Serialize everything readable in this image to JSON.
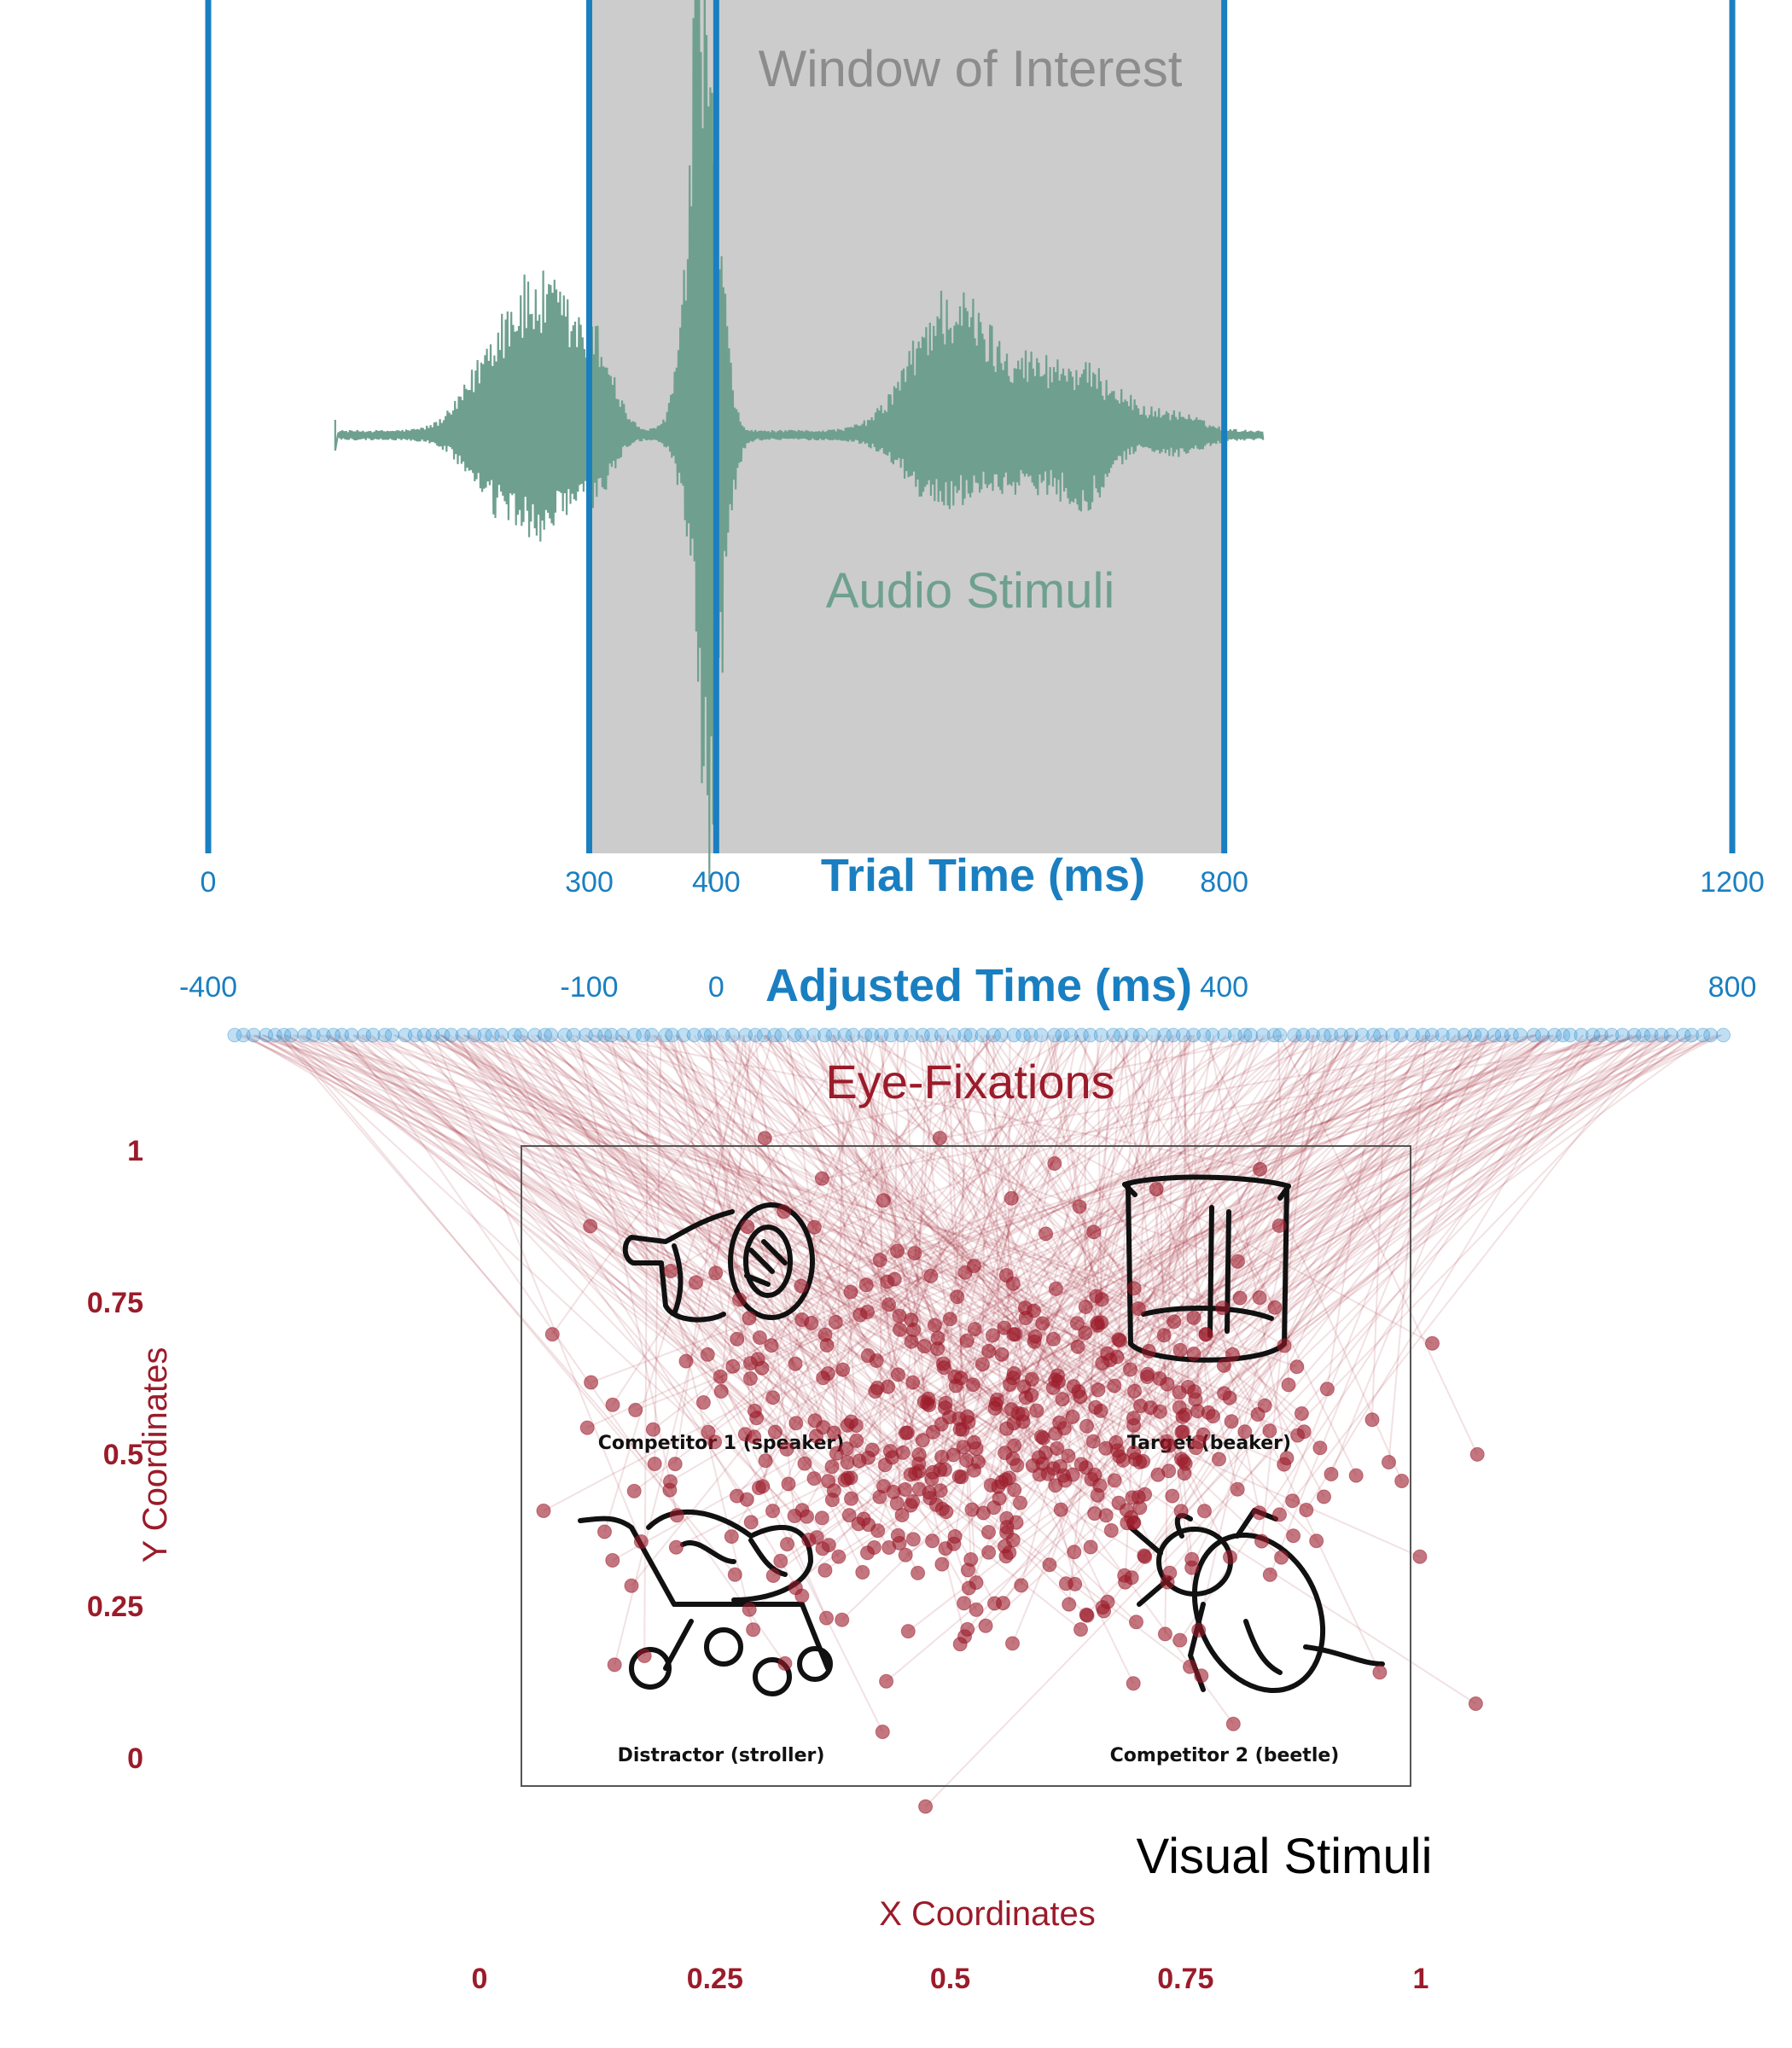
{
  "colors": {
    "timeline_blue": "#1a7fc1",
    "window_fill": "#cccccc",
    "waveform": "#6fa08f",
    "fixation_red": "#9b1b2a",
    "text_gray": "#8c8c8c"
  },
  "labels": {
    "window_of_interest": "Window of Interest",
    "audio_stimuli": "Audio Stimuli",
    "trial_time_title": "Trial Time (ms)",
    "adjusted_time_title": "Adjusted Time (ms)",
    "eye_fixations": "Eye-Fixations",
    "visual_stimuli": "Visual Stimuli",
    "y_axis_title": "Y Coordinates",
    "x_axis_title": "X Coordinates"
  },
  "stimuli": {
    "competitor1": "Competitor  1 (speaker)",
    "target": "Target (beaker)",
    "distractor": "Distractor (stroller)",
    "competitor2": "Competitor 2 (beetle)"
  },
  "icons": [
    "speaker-icon",
    "beaker-icon",
    "stroller-icon",
    "beetle-icon"
  ],
  "chart_data": {
    "type": "scatter",
    "trial_time": {
      "title": "Trial Time (ms)",
      "ticks": [
        0,
        300,
        400,
        800,
        1200
      ],
      "tick_labels": [
        "0",
        "300",
        "400",
        "800",
        "1200"
      ],
      "range": [
        0,
        1200
      ],
      "markers": [
        0,
        300,
        400,
        800,
        1200
      ],
      "window_of_interest": [
        300,
        800
      ]
    },
    "adjusted_time": {
      "title": "Adjusted Time (ms)",
      "ticks": [
        -400,
        -100,
        0,
        400,
        800
      ],
      "tick_labels": [
        "-400",
        "-100",
        "0",
        "400",
        "800"
      ],
      "range": [
        -400,
        800
      ]
    },
    "audio_waveform": {
      "label": "Audio Stimuli",
      "trial_time_range": [
        100,
        830
      ]
    },
    "x_axis": {
      "title": "X Coordinates",
      "ticks": [
        0,
        0.25,
        0.5,
        0.75,
        1
      ],
      "tick_labels": [
        "0",
        "0.25",
        "0.5",
        "0.75",
        "1"
      ],
      "range": [
        0,
        1
      ]
    },
    "y_axis": {
      "title": "Y Coordinates",
      "ticks": [
        0,
        0.25,
        0.5,
        0.75,
        1
      ],
      "tick_labels": [
        "0",
        "0.25",
        "0.5",
        "0.75",
        "1"
      ],
      "range": [
        0,
        1
      ]
    },
    "stimulus_box": {
      "x": [
        0.05,
        1.0
      ],
      "y": [
        -0.05,
        1.0
      ]
    },
    "fixations": {
      "label": "Eye-Fixations",
      "count": 520,
      "approx_center": {
        "x": 0.56,
        "y": 0.52
      }
    }
  }
}
